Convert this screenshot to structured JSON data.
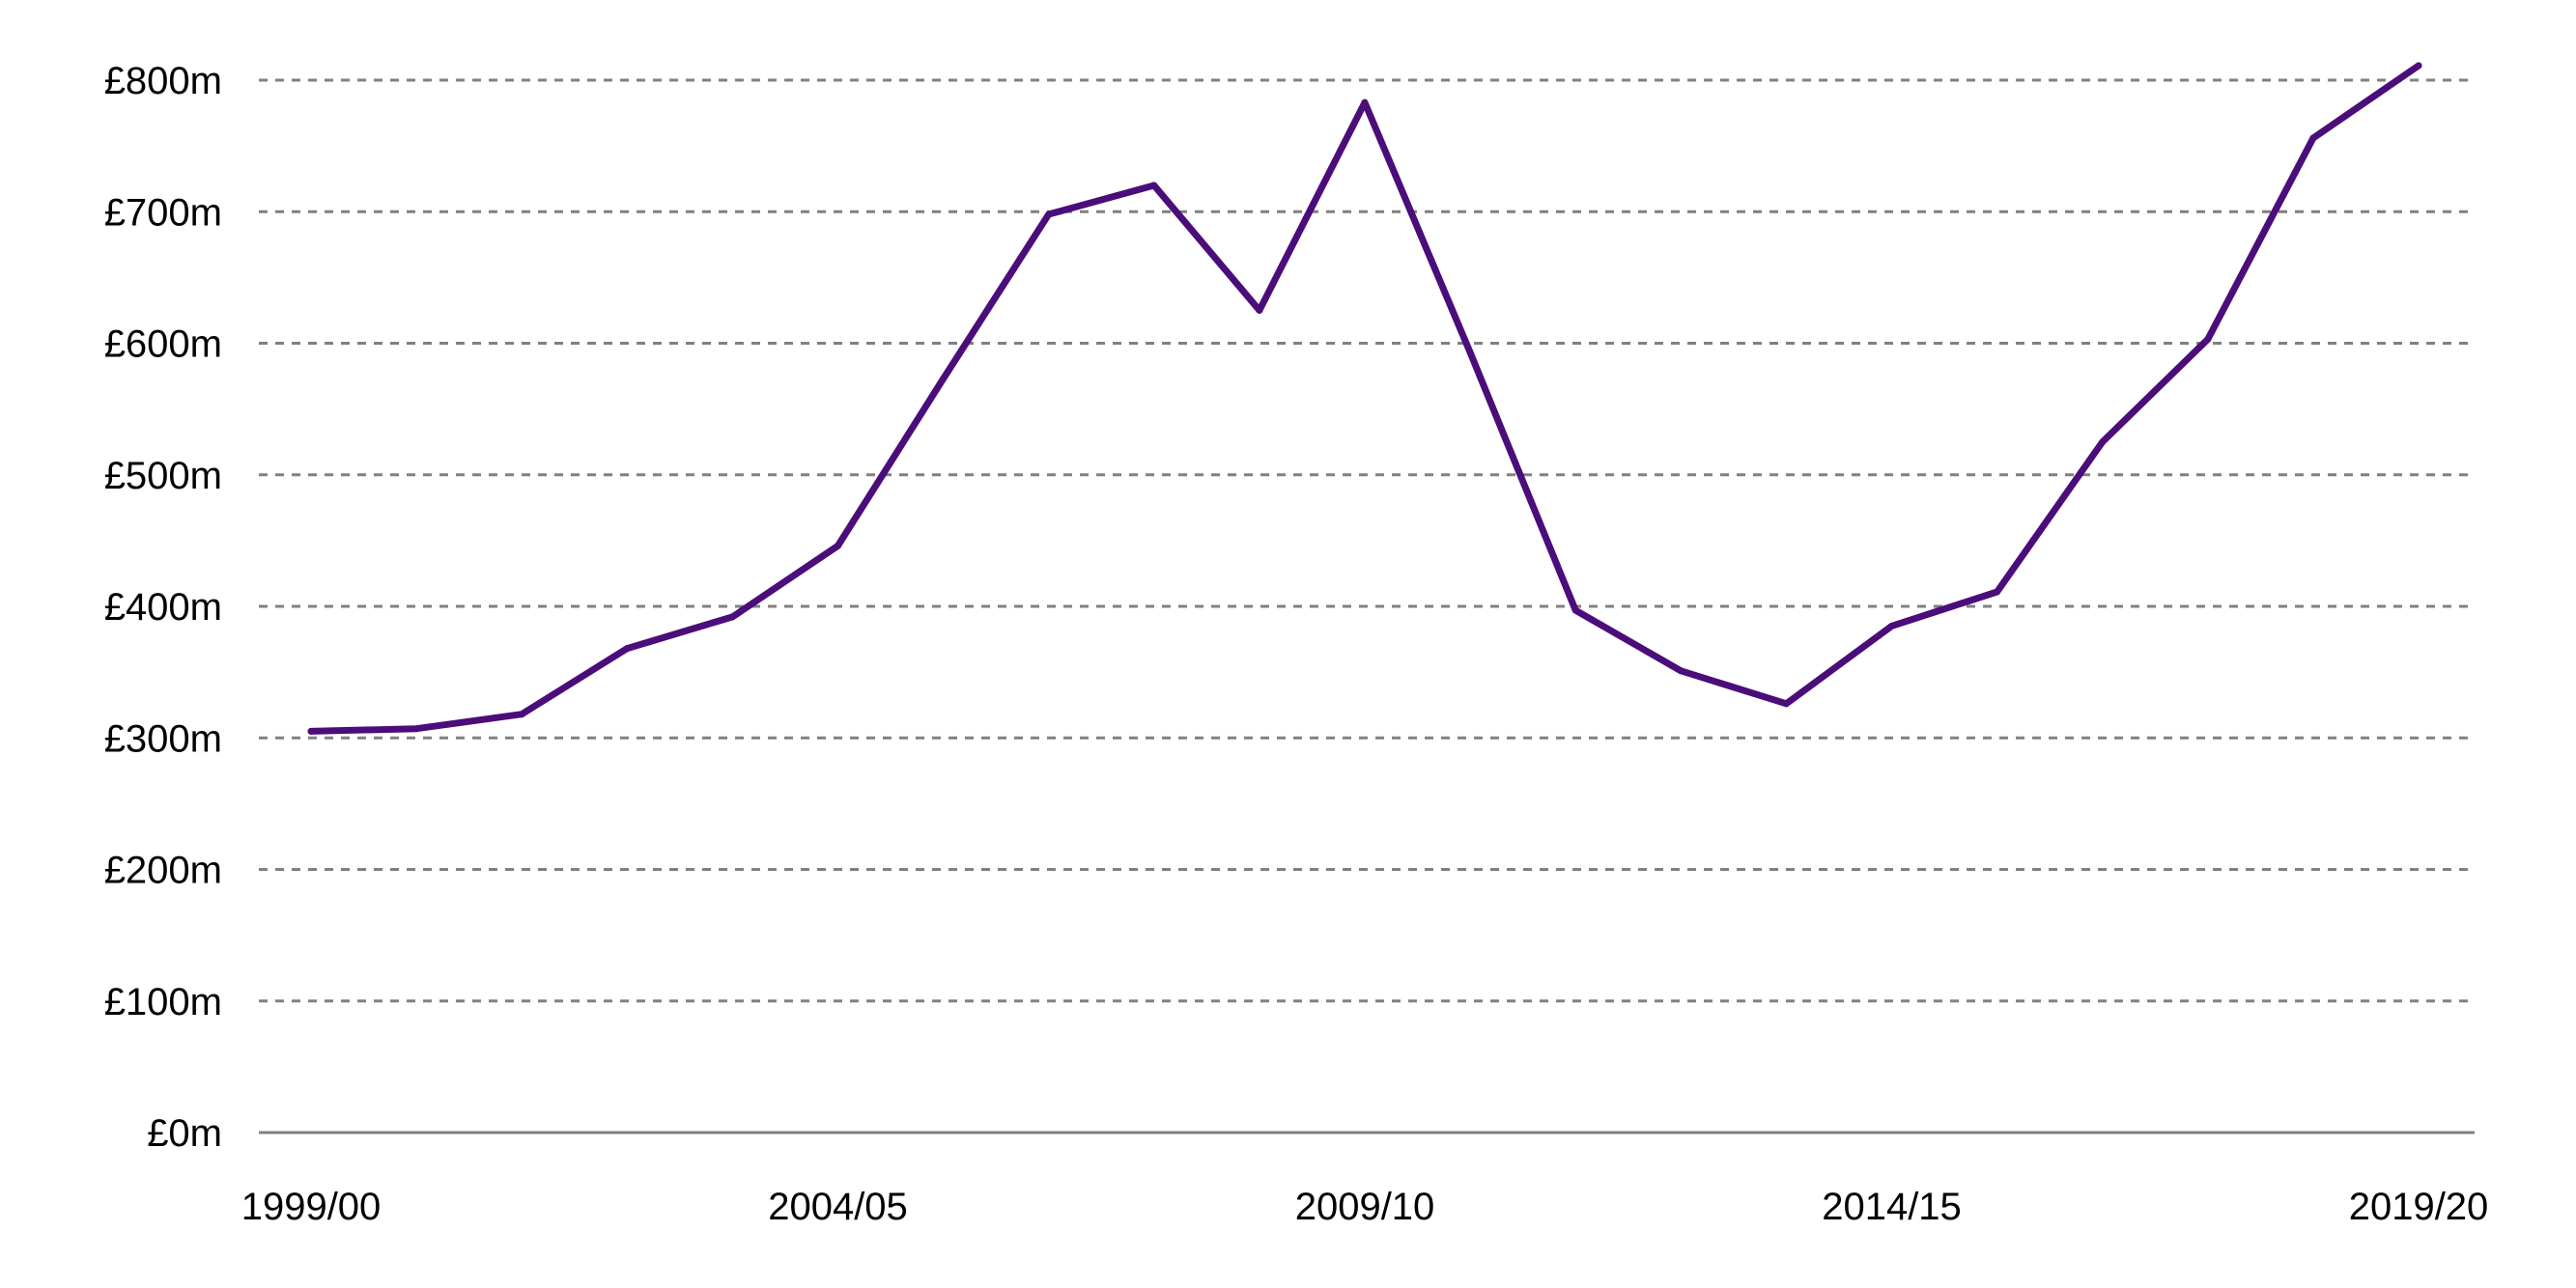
{
  "chart_data": {
    "type": "line",
    "title": "",
    "xlabel": "",
    "ylabel": "",
    "ylim": [
      0,
      800
    ],
    "grid": true,
    "legend": "none",
    "y_ticks": [
      {
        "value": 0,
        "label": "£0m"
      },
      {
        "value": 100,
        "label": "£100m"
      },
      {
        "value": 200,
        "label": "£200m"
      },
      {
        "value": 300,
        "label": "£300m"
      },
      {
        "value": 400,
        "label": "£400m"
      },
      {
        "value": 500,
        "label": "£500m"
      },
      {
        "value": 600,
        "label": "£600m"
      },
      {
        "value": 700,
        "label": "£700m"
      },
      {
        "value": 800,
        "label": "£800m"
      }
    ],
    "x": [
      "1999/00",
      "2000/01",
      "2001/02",
      "2002/03",
      "2003/04",
      "2004/05",
      "2005/06",
      "2006/07",
      "2007/08",
      "2008/09",
      "2009/10",
      "2010/11",
      "2011/12",
      "2012/13",
      "2013/14",
      "2014/15",
      "2015/16",
      "2016/17",
      "2017/18",
      "2018/19",
      "2019/20"
    ],
    "x_tick_labels": [
      "1999/00",
      "2004/05",
      "2009/10",
      "2014/15",
      "2019/20"
    ],
    "series": [
      {
        "color": "#4B0D7A",
        "values": [
          305,
          307,
          318,
          368,
          392,
          446,
          573,
          698,
          720,
          625,
          783,
          593,
          397,
          351,
          326,
          385,
          411,
          525,
          603,
          756,
          811
        ]
      }
    ]
  }
}
